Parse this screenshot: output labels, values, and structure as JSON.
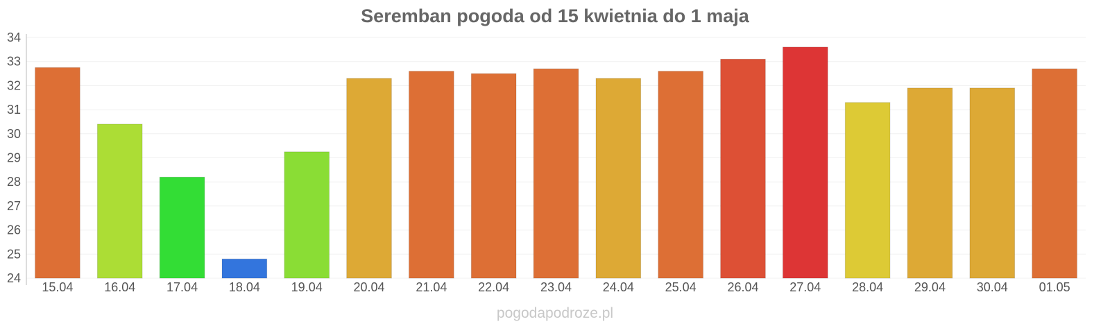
{
  "chart_data": {
    "type": "bar",
    "title": "Seremban pogoda od 15 kwietnia do 1 maja",
    "xlabel": "",
    "ylabel": "",
    "ylim": [
      24,
      34
    ],
    "yticks": [
      24,
      25,
      26,
      27,
      28,
      29,
      30,
      31,
      32,
      33,
      34
    ],
    "grid": true,
    "categories": [
      "15.04",
      "16.04",
      "17.04",
      "18.04",
      "19.04",
      "20.04",
      "21.04",
      "22.04",
      "23.04",
      "24.04",
      "25.04",
      "26.04",
      "27.04",
      "28.04",
      "29.04",
      "30.04",
      "01.05"
    ],
    "values": [
      32.75,
      30.4,
      28.2,
      24.8,
      29.25,
      32.3,
      32.6,
      32.5,
      32.7,
      32.3,
      32.6,
      33.1,
      33.6,
      31.3,
      31.9,
      31.9,
      32.7
    ],
    "colors": [
      "#dd6f35",
      "#acdd35",
      "#33dd35",
      "#3375dd",
      "#8add35",
      "#dda935",
      "#dd6f35",
      "#dd6f35",
      "#dd6f35",
      "#dda935",
      "#dd6f35",
      "#dd5035",
      "#dd3535",
      "#ddca35",
      "#dda935",
      "#dda935",
      "#dd6f35"
    ]
  },
  "watermark": "pogodapodroze.pl"
}
